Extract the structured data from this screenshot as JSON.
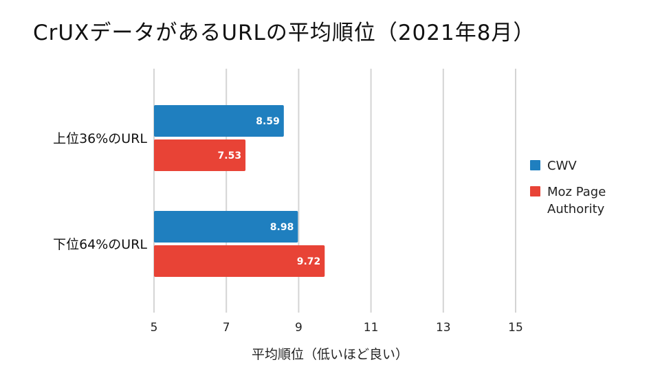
{
  "chart_data": {
    "type": "bar",
    "orientation": "horizontal",
    "title": "CrUXデータがあるURLの平均順位（2021年8月）",
    "xlabel": "平均順位（低いほど良い）",
    "ylabel": "",
    "categories": [
      "上位36%のURL",
      "下位64%のURL"
    ],
    "series": [
      {
        "name": "CWV",
        "values": [
          8.59,
          8.98
        ],
        "color": "#1f7fbf"
      },
      {
        "name": "Moz Page Authority",
        "values": [
          7.53,
          9.72
        ],
        "color": "#e84336"
      }
    ],
    "xlim": [
      5,
      15
    ],
    "xticks": [
      5,
      7,
      9,
      11,
      13,
      15
    ],
    "grid": true,
    "legend": "right",
    "legend_labels": [
      [
        "CWV"
      ],
      [
        "Moz Page",
        "Authority"
      ]
    ]
  }
}
